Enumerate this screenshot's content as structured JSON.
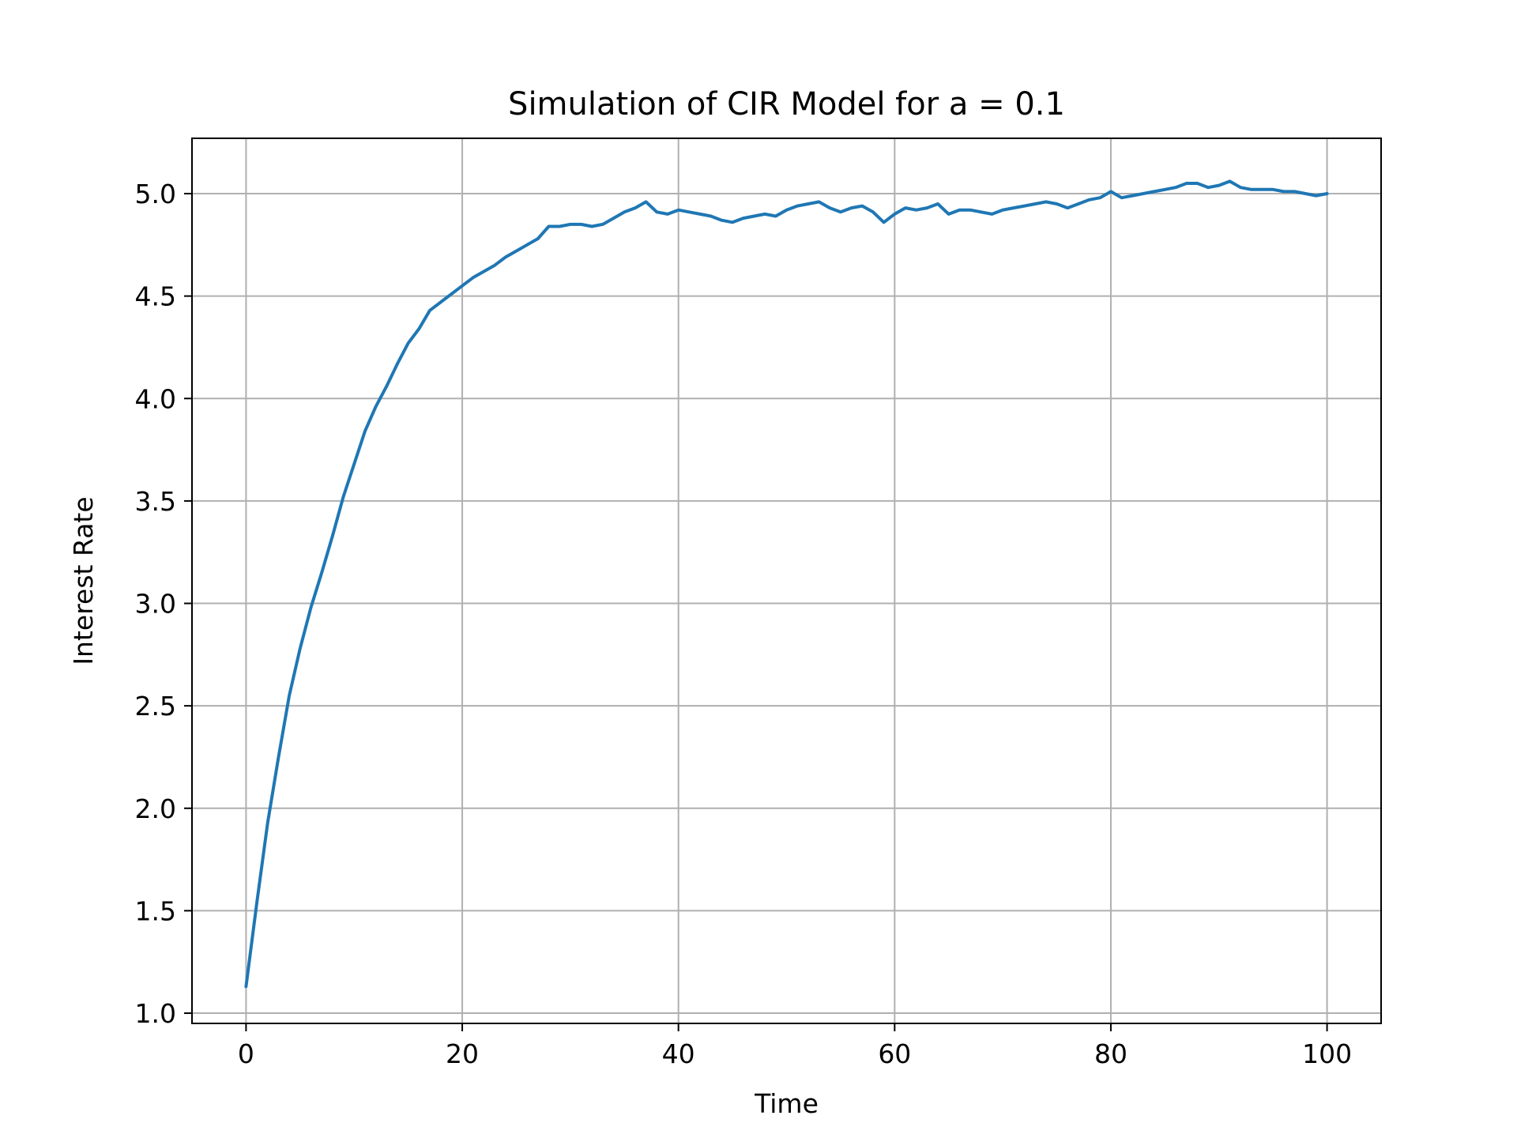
{
  "chart_data": {
    "type": "line",
    "title": "Simulation of CIR Model for a = 0.1",
    "xlabel": "Time",
    "ylabel": "Interest Rate",
    "xlim": [
      -5,
      105
    ],
    "ylim": [
      0.95,
      5.27
    ],
    "xticks": [
      0,
      20,
      40,
      60,
      80,
      100
    ],
    "xtick_labels": [
      "0",
      "20",
      "40",
      "60",
      "80",
      "100"
    ],
    "yticks": [
      1.0,
      1.5,
      2.0,
      2.5,
      3.0,
      3.5,
      4.0,
      4.5,
      5.0
    ],
    "ytick_labels": [
      "1.0",
      "1.5",
      "2.0",
      "2.5",
      "3.0",
      "3.5",
      "4.0",
      "4.5",
      "5.0"
    ],
    "grid": true,
    "colors": {
      "line": "#1f77b4",
      "grid": "#b0b0b0",
      "axes": "#000000"
    },
    "series": [
      {
        "x": [
          0,
          1,
          2,
          3,
          4,
          5,
          6,
          7,
          8,
          9,
          10,
          11,
          12,
          13,
          14,
          15,
          16,
          17,
          18,
          19,
          20,
          21,
          22,
          23,
          24,
          25,
          26,
          27,
          28,
          29,
          30,
          31,
          32,
          33,
          34,
          35,
          36,
          37,
          38,
          39,
          40,
          41,
          42,
          43,
          44,
          45,
          46,
          47,
          48,
          49,
          50,
          51,
          52,
          53,
          54,
          55,
          56,
          57,
          58,
          59,
          60,
          61,
          62,
          63,
          64,
          65,
          66,
          67,
          68,
          69,
          70,
          71,
          72,
          73,
          74,
          75,
          76,
          77,
          78,
          79,
          80,
          81,
          82,
          83,
          84,
          85,
          86,
          87,
          88,
          89,
          90,
          91,
          92,
          93,
          94,
          95,
          96,
          97,
          98,
          99,
          100
        ],
        "y": [
          1.13,
          1.54,
          1.93,
          2.25,
          2.55,
          2.78,
          2.98,
          3.15,
          3.33,
          3.52,
          3.68,
          3.84,
          3.96,
          4.06,
          4.17,
          4.27,
          4.34,
          4.43,
          4.47,
          4.51,
          4.55,
          4.59,
          4.62,
          4.65,
          4.69,
          4.72,
          4.75,
          4.78,
          4.84,
          4.84,
          4.85,
          4.85,
          4.84,
          4.85,
          4.88,
          4.91,
          4.93,
          4.96,
          4.91,
          4.9,
          4.92,
          4.91,
          4.9,
          4.89,
          4.87,
          4.86,
          4.88,
          4.89,
          4.9,
          4.89,
          4.92,
          4.94,
          4.95,
          4.96,
          4.93,
          4.91,
          4.93,
          4.94,
          4.91,
          4.86,
          4.9,
          4.93,
          4.92,
          4.93,
          4.95,
          4.9,
          4.92,
          4.92,
          4.91,
          4.9,
          4.92,
          4.93,
          4.94,
          4.95,
          4.96,
          4.95,
          4.93,
          4.95,
          4.97,
          4.98,
          5.01,
          4.98,
          4.99,
          5.0,
          5.01,
          5.02,
          5.03,
          5.05,
          5.05,
          5.03,
          5.04,
          5.06,
          5.03,
          5.02,
          5.02,
          5.02,
          5.01,
          5.01,
          5.0,
          4.99,
          5.0
        ]
      }
    ]
  }
}
